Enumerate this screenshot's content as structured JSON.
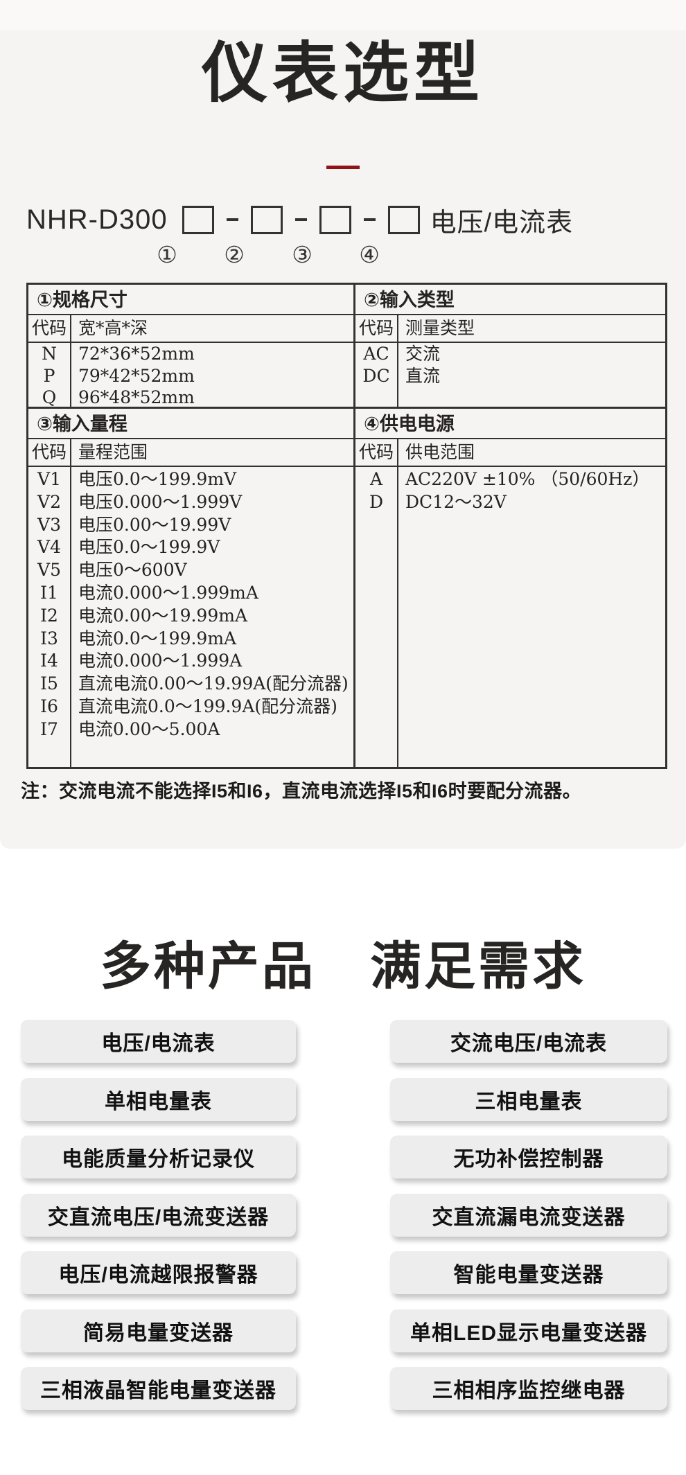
{
  "page": {
    "bg_top_strip": "#fbf8f8",
    "bg_gray_section": "#f6f4f3",
    "accent_red": "#8e1418"
  },
  "selection": {
    "title": "仪表选型",
    "model": {
      "prefix": "NHR-D300",
      "suffix": "电压/电流表",
      "circles": [
        "①",
        "②",
        "③",
        "④"
      ]
    },
    "table": {
      "spec": {
        "header": "①规格尺寸",
        "col_code": "代码",
        "col_value": "宽*高*深",
        "rows": [
          [
            "N",
            "72*36*52mm"
          ],
          [
            "P",
            "79*42*52mm"
          ],
          [
            "Q",
            "96*48*52mm"
          ]
        ]
      },
      "input_type": {
        "header": "②输入类型",
        "col_code": "代码",
        "col_value": "测量类型",
        "rows": [
          [
            "AC",
            "交流"
          ],
          [
            "DC",
            "直流"
          ]
        ]
      },
      "range": {
        "header": "③输入量程",
        "col_code": "代码",
        "col_value": "量程范围",
        "rows": [
          [
            "V1",
            "电压0.0～199.9mV"
          ],
          [
            "V2",
            "电压0.000～1.999V"
          ],
          [
            "V3",
            "电压0.00～19.99V"
          ],
          [
            "V4",
            "电压0.0～199.9V"
          ],
          [
            "V5",
            "电压0～600V"
          ],
          [
            "I1",
            "电流0.000～1.999mA"
          ],
          [
            "I2",
            "电流0.00～19.99mA"
          ],
          [
            "I3",
            "电流0.0～199.9mA"
          ],
          [
            "I4",
            "电流0.000～1.999A"
          ],
          [
            "I5",
            "直流电流0.00～19.99A(配分流器)"
          ],
          [
            "I6",
            "直流电流0.0～199.9A(配分流器)"
          ],
          [
            "I7",
            "电流0.00～5.00A"
          ]
        ]
      },
      "power": {
        "header": "④供电电源",
        "col_code": "代码",
        "col_value": "供电范围",
        "rows": [
          [
            "A",
            "AC220V ±10% （50/60Hz）"
          ],
          [
            "D",
            "DC12～32V"
          ]
        ]
      }
    },
    "note": "注：交流电流不能选择I5和I6，直流电流选择I5和I6时要配分流器。"
  },
  "products": {
    "title": "多种产品　满足需求",
    "left": [
      "电压/电流表",
      "单相电量表",
      "电能质量分析记录仪",
      "交直流电压/电流变送器",
      "电压/电流越限报警器",
      "简易电量变送器",
      "三相液晶智能电量变送器"
    ],
    "right": [
      "交流电压/电流表",
      "三相电量表",
      "无功补偿控制器",
      "交直流漏电流变送器",
      "智能电量变送器",
      "单相LED显示电量变送器",
      "三相相序监控继电器"
    ]
  }
}
